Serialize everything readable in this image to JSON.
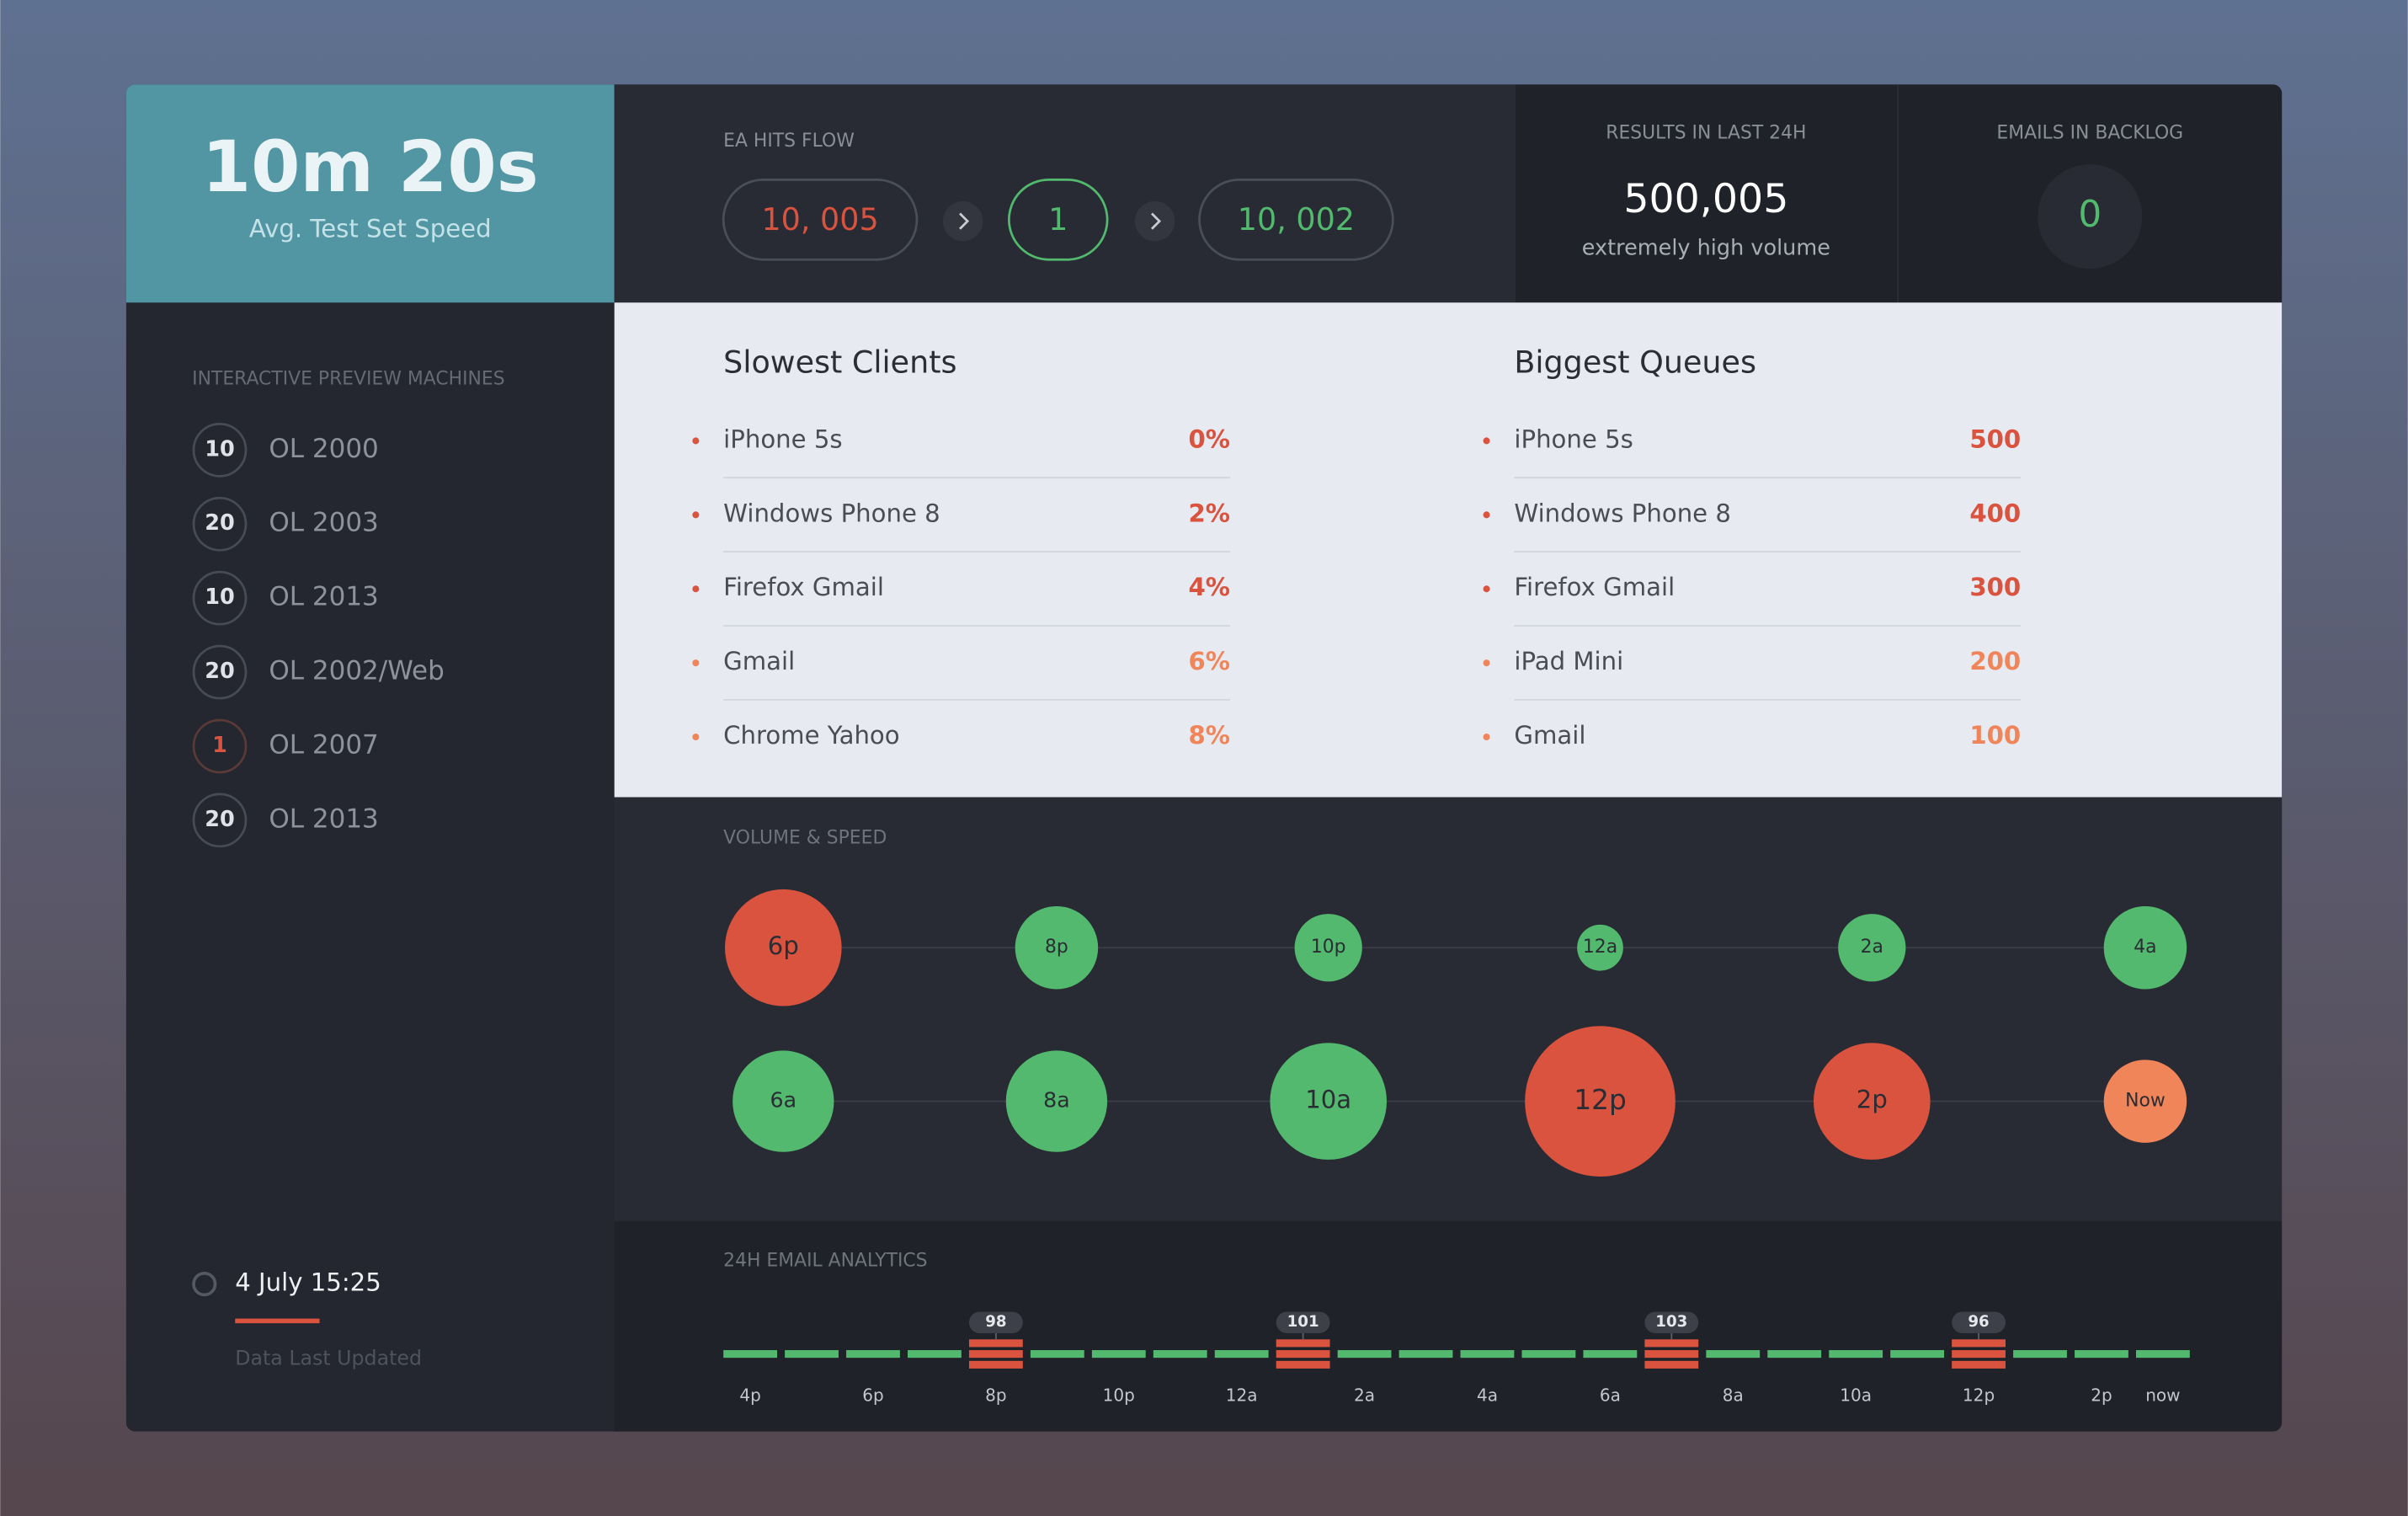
{
  "speed": {
    "value": "10m 20s",
    "label": "Avg. Test Set Speed"
  },
  "hits_flow": {
    "title": "EA HITS FLOW",
    "steps": [
      {
        "text": "10, 005",
        "color": "#d9533f",
        "border": "#4a4e56"
      },
      {
        "text": "1",
        "color": "#52b96e",
        "border": "#52b96e"
      },
      {
        "text": "10, 002",
        "color": "#52b96e",
        "border": "#4a4e56"
      }
    ]
  },
  "results": {
    "title": "RESULTS IN LAST 24H",
    "value": "500,005",
    "note": "extremely high volume"
  },
  "backlog": {
    "title": "EMAILS IN BACKLOG",
    "value": "0"
  },
  "machines": {
    "title": "INTERACTIVE PREVIEW MACHINES",
    "items": [
      {
        "count": "10",
        "name": "OL 2000",
        "color": "#dfe2e8"
      },
      {
        "count": "20",
        "name": "OL 2003",
        "color": "#dfe2e8"
      },
      {
        "count": "10",
        "name": "OL 2013",
        "color": "#dfe2e8"
      },
      {
        "count": "20",
        "name": "OL 2002/Web",
        "color": "#dfe2e8"
      },
      {
        "count": "1",
        "name": "OL 2007",
        "color": "#d9533f"
      },
      {
        "count": "20",
        "name": "OL 2013",
        "color": "#dfe2e8"
      }
    ]
  },
  "updated": {
    "date": "4 July 15:25",
    "label": "Data Last Updated"
  },
  "slowest": {
    "title": "Slowest Clients",
    "rows": [
      {
        "name": "iPhone 5s",
        "value": "0%",
        "color": "#d9533f"
      },
      {
        "name": "Windows Phone 8",
        "value": "2%",
        "color": "#d9533f"
      },
      {
        "name": "Firefox Gmail",
        "value": "4%",
        "color": "#d9533f"
      },
      {
        "name": "Gmail",
        "value": "6%",
        "color": "#f0855a"
      },
      {
        "name": "Chrome Yahoo",
        "value": "8%",
        "color": "#f0855a"
      }
    ]
  },
  "queues": {
    "title": "Biggest Queues",
    "rows": [
      {
        "name": "iPhone 5s",
        "value": "500",
        "color": "#d9533f"
      },
      {
        "name": "Windows Phone 8",
        "value": "400",
        "color": "#d9533f"
      },
      {
        "name": "Firefox Gmail",
        "value": "300",
        "color": "#d9533f"
      },
      {
        "name": "iPad Mini",
        "value": "200",
        "color": "#f0855a"
      },
      {
        "name": "Gmail",
        "value": "100",
        "color": "#f0855a"
      }
    ]
  },
  "volume": {
    "title": "VOLUME & SPEED",
    "rows": [
      [
        {
          "label": "6p",
          "volume": 38,
          "color": "#d9533f"
        },
        {
          "label": "8p",
          "volume": 27,
          "color": "#52b96e"
        },
        {
          "label": "10p",
          "volume": 22,
          "color": "#52b96e"
        },
        {
          "label": "12a",
          "volume": 15,
          "color": "#52b96e"
        },
        {
          "label": "2a",
          "volume": 22,
          "color": "#52b96e"
        },
        {
          "label": "4a",
          "volume": 27,
          "color": "#52b96e"
        }
      ],
      [
        {
          "label": "6a",
          "volume": 33,
          "color": "#52b96e"
        },
        {
          "label": "8a",
          "volume": 33,
          "color": "#52b96e"
        },
        {
          "label": "10a",
          "volume": 38,
          "color": "#52b96e"
        },
        {
          "label": "12p",
          "volume": 49,
          "color": "#d9533f"
        },
        {
          "label": "2p",
          "volume": 38,
          "color": "#d9533f"
        },
        {
          "label": "Now",
          "volume": 27,
          "color": "#f0855a"
        }
      ]
    ]
  },
  "analytics": {
    "title": "24H EMAIL ANALYTICS",
    "categories": [
      "4p",
      null,
      "6p",
      null,
      "8p",
      null,
      "10p",
      null,
      "12a",
      null,
      "2a",
      null,
      "4a",
      null,
      "6a",
      null,
      "8a",
      null,
      "10a",
      null,
      "12p",
      null,
      "2p",
      "now"
    ],
    "peaks": [
      null,
      null,
      null,
      null,
      98,
      null,
      null,
      null,
      null,
      101,
      null,
      null,
      null,
      null,
      null,
      103,
      null,
      null,
      null,
      null,
      96,
      null,
      null,
      null
    ],
    "color": "#52b96e",
    "peak_color": "#d9533f"
  }
}
